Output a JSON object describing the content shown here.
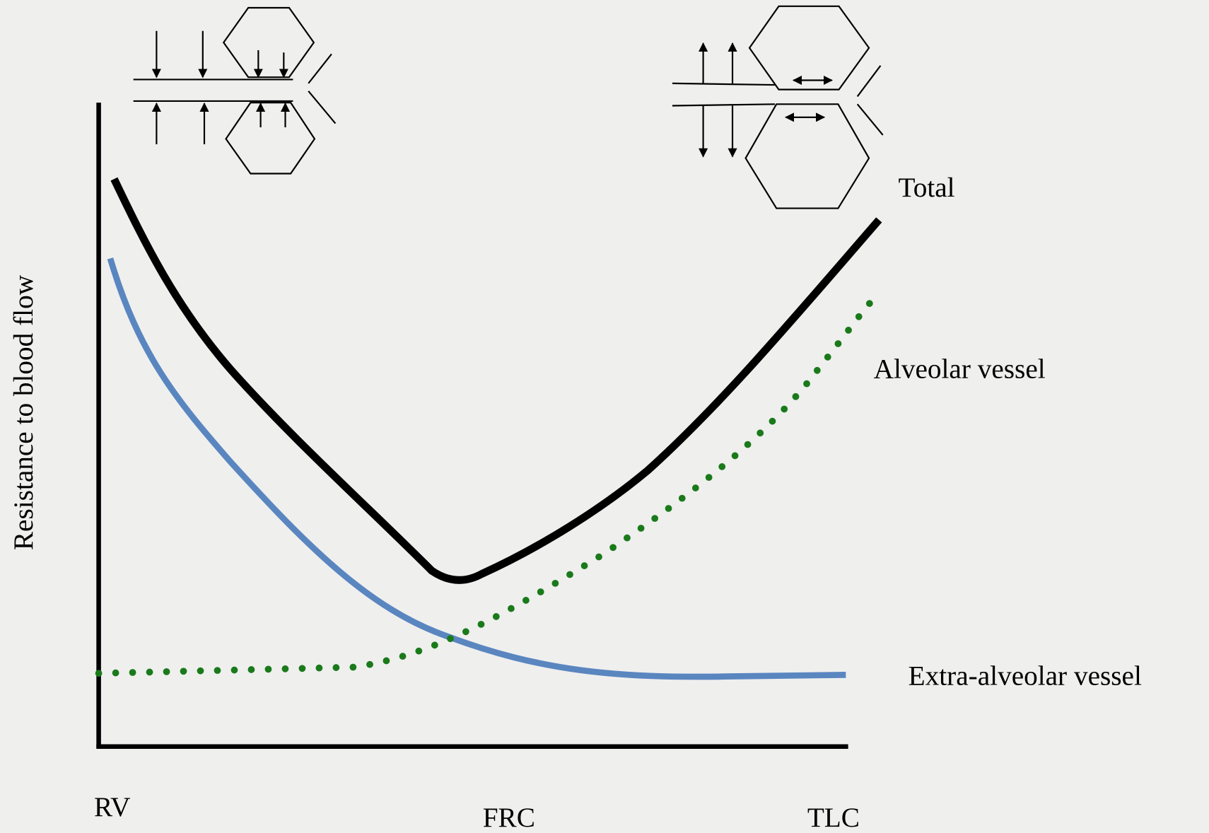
{
  "axes": {
    "y_label": "Resistance to blood flow",
    "x_labels": [
      "RV",
      "FRC",
      "TLC"
    ]
  },
  "curves": {
    "total": "Total",
    "alveolar": "Alveolar vessel",
    "extra_alveolar": "Extra-alveolar vessel"
  }
}
